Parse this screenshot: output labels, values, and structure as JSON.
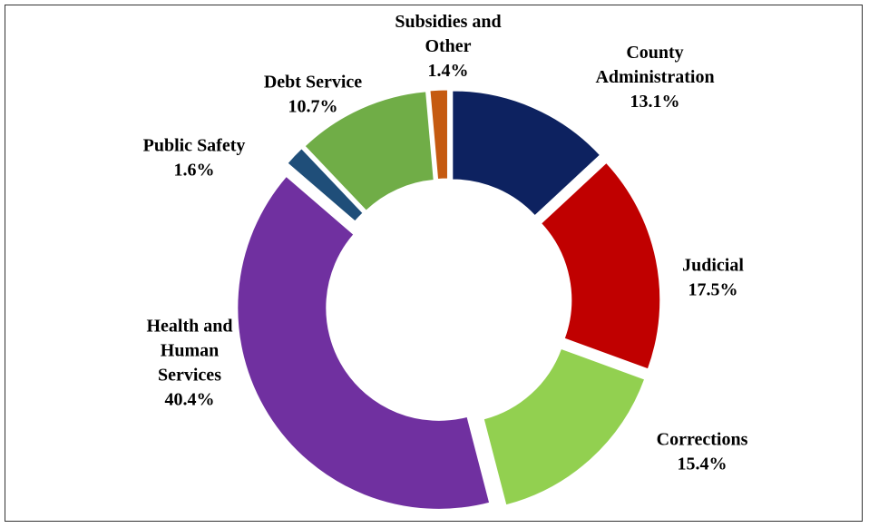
{
  "chart_data": {
    "type": "pie",
    "style": "donut, exploded slices",
    "slices": [
      {
        "label": [
          "County",
          "Administration"
        ],
        "value": 13.1,
        "value_text": "13.1%",
        "color": "#0d2260"
      },
      {
        "label": [
          "Judicial"
        ],
        "value": 17.5,
        "value_text": "17.5%",
        "color": "#c00000"
      },
      {
        "label": [
          "Corrections"
        ],
        "value": 15.4,
        "value_text": "15.4%",
        "color": "#92d050"
      },
      {
        "label": [
          "Health and",
          "Human",
          "Services"
        ],
        "value": 40.4,
        "value_text": "40.4%",
        "color": "#7030a0"
      },
      {
        "label": [
          "Public Safety"
        ],
        "value": 1.6,
        "value_text": "1.6%",
        "color": "#1f4e79"
      },
      {
        "label": [
          "Debt Service"
        ],
        "value": 10.7,
        "value_text": "10.7%",
        "color": "#70ad47"
      },
      {
        "label": [
          "Subsidies and",
          "Other"
        ],
        "value": 1.4,
        "value_text": "1.4%",
        "color": "#c55a11"
      }
    ],
    "legend": "none"
  }
}
